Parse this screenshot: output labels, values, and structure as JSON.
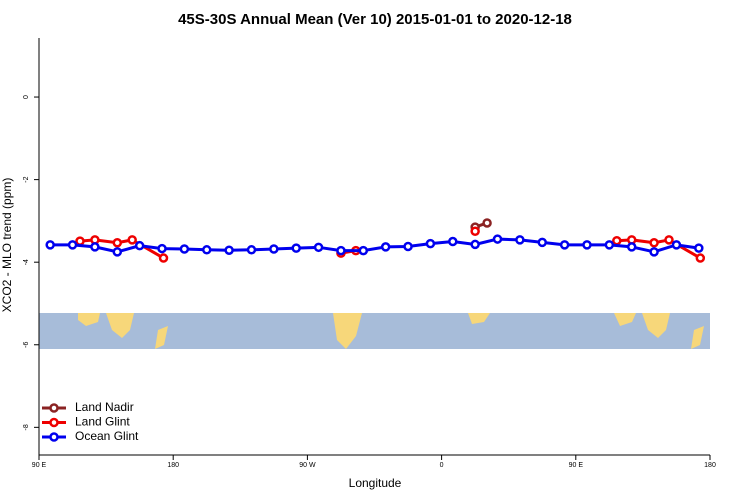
{
  "chart_data": {
    "type": "line",
    "title": "45S-30S Annual Mean (Ver 10)   2015-01-01 to 2020-12-18",
    "xlabel": "Longitude",
    "ylabel": "XCO2 - MLO trend (ppm)",
    "xlim": [
      90,
      540
    ],
    "xticks": [
      {
        "value": 90,
        "label": "90 E"
      },
      180,
      {
        "value": 270,
        "label": "90 W"
      },
      {
        "value": 360,
        "label": "0"
      },
      {
        "value": 450,
        "label": "90 E"
      },
      {
        "value": 540,
        "label": "180"
      }
    ],
    "ylim": [
      -8.67,
      1.43
    ],
    "yticks": [
      0,
      -2,
      -4,
      -6,
      -8
    ],
    "legend": "bottom-left",
    "series": [
      {
        "name": "Land Nadir",
        "color": "#8b2323",
        "x": [
          382.5,
          390.5
        ],
        "values": [
          -3.15,
          -3.05
        ]
      },
      {
        "name": "Land Glint",
        "color": "#ee0000",
        "x": [
          117.5,
          127.5,
          142.5,
          152.5,
          173.5,
          null,
          292.5,
          302.5,
          null,
          382.5,
          null,
          477.5,
          487.5,
          502.5,
          512.5,
          533.5
        ],
        "values": [
          -3.49,
          -3.46,
          -3.53,
          -3.46,
          -3.9,
          null,
          -3.78,
          -3.72,
          null,
          -3.25,
          null,
          -3.48,
          -3.46,
          -3.53,
          -3.46,
          -3.9
        ]
      },
      {
        "name": "Ocean Glint",
        "color": "#0000ee",
        "x": [
          97.5,
          112.5,
          127.5,
          142.5,
          157.5,
          172.5,
          187.5,
          202.5,
          217.5,
          232.5,
          247.5,
          262.5,
          277.5,
          292.5,
          307.5,
          322.5,
          337.5,
          352.5,
          367.5,
          382.5,
          397.5,
          412.5,
          427.5,
          442.5,
          457.5,
          472.5,
          487.5,
          502.5,
          517.5,
          532.5
        ],
        "values": [
          -3.58,
          -3.58,
          -3.63,
          -3.75,
          -3.6,
          -3.67,
          -3.68,
          -3.7,
          -3.71,
          -3.7,
          -3.68,
          -3.66,
          -3.64,
          -3.72,
          -3.72,
          -3.63,
          -3.62,
          -3.55,
          -3.5,
          -3.57,
          -3.44,
          -3.46,
          -3.52,
          -3.58,
          -3.58,
          -3.58,
          -3.63,
          -3.75,
          -3.58,
          -3.66
        ]
      }
    ]
  }
}
